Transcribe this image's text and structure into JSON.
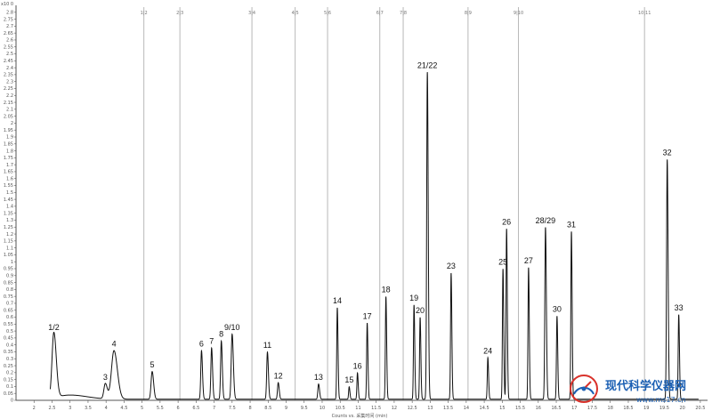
{
  "chart_data": {
    "type": "line",
    "scale_label": "x10 0",
    "xlabel": "Counts vs. 采集时间 (min)",
    "xlim": [
      1.5,
      20.7
    ],
    "ylim": [
      0,
      2.85
    ],
    "x_ticks": [
      2,
      2.5,
      3,
      3.5,
      4,
      4.5,
      5,
      5.5,
      6,
      6.5,
      7,
      7.5,
      8,
      8.5,
      9,
      9.5,
      10,
      10.5,
      11,
      11.5,
      12,
      12.5,
      13,
      13.5,
      14,
      14.5,
      15,
      15.5,
      16,
      16.5,
      17,
      17.5,
      18,
      18.5,
      19,
      19.5,
      20,
      20.5
    ],
    "x_tick_labels": [
      "2",
      "2.5",
      "3",
      "3.5",
      "4",
      "4.5",
      "5",
      "5.5",
      "6",
      "6.5",
      "7",
      "7.5",
      "8",
      "8.5",
      "9",
      "9.5",
      "10",
      "10.5",
      "11",
      "11.5",
      "12",
      "12.5",
      "13",
      "13.5",
      "14",
      "14.5",
      "15",
      "15.5",
      "16",
      "16.5",
      "17",
      "17.5",
      "18",
      "18.5",
      "19",
      "19.5",
      "20",
      "20.5"
    ],
    "y_ticks": [
      0,
      0.05,
      0.1,
      0.15,
      0.2,
      0.25,
      0.3,
      0.35,
      0.4,
      0.45,
      0.5,
      0.55,
      0.6,
      0.65,
      0.7,
      0.75,
      0.8,
      0.85,
      0.9,
      0.95,
      1,
      1.05,
      1.1,
      1.15,
      1.2,
      1.25,
      1.3,
      1.35,
      1.4,
      1.45,
      1.5,
      1.55,
      1.6,
      1.65,
      1.7,
      1.75,
      1.8,
      1.85,
      1.9,
      1.95,
      2,
      2.05,
      2.1,
      2.15,
      2.2,
      2.25,
      2.3,
      2.35,
      2.4,
      2.45,
      2.5,
      2.55,
      2.6,
      2.65,
      2.7,
      2.75,
      2.8
    ],
    "y_tick_labels": [
      "0",
      "0.05",
      "0.1",
      "0.15",
      "0.2",
      "0.25",
      "0.3",
      "0.35",
      "0.4",
      "0.45",
      "0.5",
      "0.55",
      "0.6",
      "0.65",
      "0.7",
      "0.75",
      "0.8",
      "0.85",
      "0.9",
      "0.95",
      "1",
      "1.05",
      "1.1",
      "1.15",
      "1.2",
      "1.25",
      "1.3",
      "1.35",
      "1.4",
      "1.45",
      "1.5",
      "1.55",
      "1.6",
      "1.65",
      "1.7",
      "1.75",
      "1.8",
      "1.85",
      "1.9",
      "1.95",
      "2",
      "2.05",
      "2.1",
      "2.15",
      "2.2",
      "2.25",
      "2.3",
      "2.35",
      "2.4",
      "2.45",
      "2.5",
      "2.55",
      "2.6",
      "2.65",
      "2.7",
      "2.75",
      "2.8"
    ],
    "segments": [
      {
        "label": "1|2",
        "x": 5.05
      },
      {
        "label": "2|3",
        "x": 6.05
      },
      {
        "label": "3|4",
        "x": 8.05
      },
      {
        "label": "4|5",
        "x": 9.25
      },
      {
        "label": "5|6",
        "x": 10.15
      },
      {
        "label": "6|7",
        "x": 11.6
      },
      {
        "label": "7|8",
        "x": 12.25
      },
      {
        "label": "8|9",
        "x": 14.05
      },
      {
        "label": "9|10",
        "x": 15.45
      },
      {
        "label": "10|11",
        "x": 18.95
      }
    ],
    "peaks": [
      {
        "label": "1/2",
        "x": 2.55,
        "y": 0.47,
        "w": 0.05
      },
      {
        "label": "",
        "x": 3.0,
        "y": 0.03,
        "w": 0.35
      },
      {
        "label": "3",
        "x": 3.98,
        "y": 0.11,
        "w": 0.04
      },
      {
        "label": "4",
        "x": 4.22,
        "y": 0.35,
        "w": 0.07
      },
      {
        "label": "5",
        "x": 5.28,
        "y": 0.2,
        "w": 0.03
      },
      {
        "label": "6",
        "x": 6.65,
        "y": 0.35,
        "w": 0.02
      },
      {
        "label": "7",
        "x": 6.93,
        "y": 0.37,
        "w": 0.02
      },
      {
        "label": "8",
        "x": 7.2,
        "y": 0.42,
        "w": 0.02
      },
      {
        "label": "9/10",
        "x": 7.5,
        "y": 0.47,
        "w": 0.025
      },
      {
        "label": "11",
        "x": 8.48,
        "y": 0.34,
        "w": 0.02
      },
      {
        "label": "12",
        "x": 8.78,
        "y": 0.12,
        "w": 0.02
      },
      {
        "label": "13",
        "x": 9.9,
        "y": 0.11,
        "w": 0.02
      },
      {
        "label": "14",
        "x": 10.42,
        "y": 0.66,
        "w": 0.015
      },
      {
        "label": "15",
        "x": 10.75,
        "y": 0.09,
        "w": 0.015
      },
      {
        "label": "16",
        "x": 10.98,
        "y": 0.19,
        "w": 0.015
      },
      {
        "label": "17",
        "x": 11.25,
        "y": 0.55,
        "w": 0.015
      },
      {
        "label": "18",
        "x": 11.77,
        "y": 0.74,
        "w": 0.015
      },
      {
        "label": "19",
        "x": 12.55,
        "y": 0.68,
        "w": 0.015
      },
      {
        "label": "20",
        "x": 12.72,
        "y": 0.59,
        "w": 0.015
      },
      {
        "label": "21/22",
        "x": 12.92,
        "y": 2.36,
        "w": 0.018
      },
      {
        "label": "23",
        "x": 13.58,
        "y": 0.91,
        "w": 0.015
      },
      {
        "label": "24",
        "x": 14.6,
        "y": 0.3,
        "w": 0.015
      },
      {
        "label": "25",
        "x": 15.02,
        "y": 0.94,
        "w": 0.015
      },
      {
        "label": "26",
        "x": 15.12,
        "y": 1.23,
        "w": 0.015
      },
      {
        "label": "27",
        "x": 15.73,
        "y": 0.95,
        "w": 0.015
      },
      {
        "label": "28/29",
        "x": 16.2,
        "y": 1.24,
        "w": 0.018
      },
      {
        "label": "30",
        "x": 16.52,
        "y": 0.6,
        "w": 0.015
      },
      {
        "label": "31",
        "x": 16.92,
        "y": 1.21,
        "w": 0.015
      },
      {
        "label": "32",
        "x": 19.58,
        "y": 1.73,
        "w": 0.018
      },
      {
        "label": "33",
        "x": 19.9,
        "y": 0.61,
        "w": 0.015
      }
    ],
    "grid": false,
    "line_color": "#111111",
    "segment_color": "#b8b8b8"
  },
  "watermark": {
    "title": "现代科学仪器网",
    "url": "www.ms17.cn",
    "color": "#1b5fb3",
    "accent": "#d9322b"
  }
}
